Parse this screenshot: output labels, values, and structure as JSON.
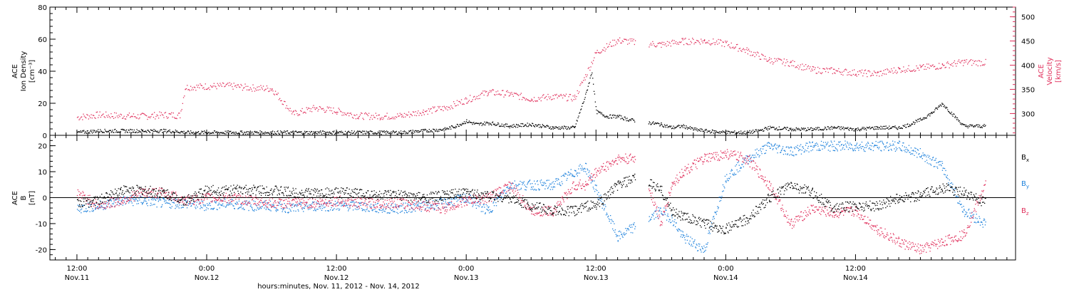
{
  "chart_data": [
    {
      "type": "scatter",
      "panel": "top",
      "ylabel_left": [
        "ACE",
        "Ion Density",
        "[cm⁻³]"
      ],
      "ylabel_right": [
        "ACE",
        "Velocity",
        "[km/s]"
      ],
      "ylim_left": [
        0,
        80
      ],
      "yticks_left": [
        "0",
        "20",
        "40",
        "60",
        "80"
      ],
      "ylim_right": [
        255,
        520
      ],
      "yticks_right": [
        "300",
        "350",
        "400",
        "450",
        "500"
      ],
      "colors": {
        "density": "#000000",
        "velocity": "#e0305c"
      },
      "series": [
        {
          "axis": "left",
          "color": "#000000",
          "x": [
            0,
            2,
            4,
            6,
            8,
            9.5,
            10,
            12,
            14,
            16,
            18,
            20,
            22,
            24,
            26,
            28,
            30,
            32,
            34,
            35,
            36,
            37,
            38,
            40,
            42,
            44,
            46,
            47,
            47.6,
            48,
            49,
            50,
            51,
            52,
            54,
            55,
            56,
            57,
            58,
            60,
            61,
            62,
            63,
            64,
            66,
            68,
            70,
            72,
            74,
            76,
            77,
            78,
            79,
            80,
            82,
            84
          ],
          "y": [
            2,
            3,
            3,
            3,
            3,
            2.5,
            2,
            2,
            2,
            2,
            2,
            2,
            2,
            2,
            2,
            2,
            2,
            3,
            4,
            6,
            9,
            7,
            8,
            6,
            7,
            5,
            5,
            25,
            40,
            15,
            12,
            12,
            10,
            9,
            7,
            5,
            6,
            4,
            3,
            2,
            2,
            2,
            3,
            5,
            4,
            4,
            5,
            4,
            5,
            5,
            7,
            10,
            14,
            20,
            6,
            6
          ]
        },
        {
          "axis": "right",
          "color": "#e0305c",
          "x": [
            0,
            2,
            4,
            6,
            8,
            9.5,
            10,
            12,
            14,
            16,
            18,
            20,
            22,
            24,
            26,
            28,
            30,
            32,
            34,
            36,
            38,
            40,
            42,
            44,
            46,
            47,
            48,
            50,
            52,
            54,
            56,
            58,
            60,
            62,
            64,
            66,
            68,
            70,
            72,
            74,
            76,
            78,
            80,
            82,
            84
          ],
          "y": [
            293,
            298,
            296,
            295,
            298,
            297,
            355,
            357,
            358,
            354,
            352,
            300,
            312,
            306,
            296,
            295,
            296,
            305,
            312,
            329,
            345,
            341,
            331,
            336,
            333,
            378,
            427,
            452,
            447,
            443,
            450,
            451,
            445,
            430,
            411,
            405,
            391,
            389,
            385,
            383,
            392,
            395,
            400,
            407,
            406
          ]
        }
      ]
    },
    {
      "type": "scatter",
      "panel": "bottom",
      "ylabel_left": [
        "ACE",
        "B",
        "[nT]"
      ],
      "ylim": [
        -24,
        24
      ],
      "yticks": [
        "-20",
        "-10",
        "0",
        "10",
        "20"
      ],
      "zero_line": true,
      "legend": [
        "Bx",
        "By",
        "Bz"
      ],
      "colors": {
        "Bx": "#000000",
        "By": "#1e82dc",
        "Bz": "#e0305c"
      },
      "series": [
        {
          "name": "Bx",
          "color": "#000000",
          "x": [
            0,
            2,
            4,
            6,
            8,
            10,
            12,
            14,
            16,
            18,
            20,
            22,
            24,
            26,
            28,
            30,
            32,
            34,
            36,
            38,
            40,
            42,
            44,
            46,
            47,
            48,
            50,
            52,
            54,
            55,
            56,
            58,
            60,
            62,
            64,
            66,
            68,
            70,
            72,
            74,
            76,
            78,
            80,
            82,
            84
          ],
          "y": [
            -2,
            -1,
            3,
            3,
            2,
            -1,
            3,
            3,
            3,
            3,
            2,
            2,
            2,
            2,
            1,
            1,
            0,
            1,
            2,
            1,
            0,
            -3,
            -5,
            -5,
            -3,
            -3,
            5,
            8,
            3,
            -5,
            -7,
            -10,
            -12,
            -8,
            0,
            5,
            2,
            -4,
            -3,
            -3,
            0,
            1,
            4,
            2,
            -2
          ]
        },
        {
          "name": "By",
          "color": "#1e82dc",
          "x": [
            0,
            2,
            4,
            6,
            8,
            10,
            12,
            14,
            16,
            18,
            20,
            22,
            24,
            26,
            28,
            30,
            32,
            34,
            36,
            38,
            40,
            42,
            44,
            46,
            47,
            48,
            50,
            52,
            54,
            55,
            56,
            58,
            60,
            62,
            64,
            66,
            68,
            70,
            72,
            74,
            76,
            78,
            80,
            82,
            84
          ],
          "y": [
            -4,
            -3,
            -1,
            -1,
            -2,
            -2,
            -3,
            -2,
            -3,
            -3,
            -4,
            -3,
            -3,
            -3,
            -4,
            -4,
            -3,
            -2,
            0,
            -5,
            5,
            5,
            5,
            10,
            12,
            3,
            -15,
            -10,
            -5,
            -8,
            -15,
            -20,
            8,
            15,
            20,
            18,
            20,
            20,
            20,
            20,
            20,
            17,
            12,
            -5,
            -10
          ]
        },
        {
          "name": "Bz",
          "color": "#e0305c",
          "x": [
            0,
            2,
            4,
            6,
            8,
            10,
            12,
            14,
            16,
            18,
            20,
            22,
            24,
            26,
            28,
            30,
            32,
            34,
            36,
            38,
            40,
            42,
            44,
            46,
            47,
            48,
            50,
            52,
            54,
            55,
            56,
            58,
            60,
            62,
            64,
            66,
            68,
            70,
            72,
            74,
            76,
            78,
            80,
            82,
            84
          ],
          "y": [
            2,
            -3,
            -1,
            2,
            2,
            -1,
            0,
            0,
            -1,
            -2,
            -2,
            -2,
            -1,
            -2,
            -2,
            -2,
            -3,
            -4,
            -1,
            0,
            5,
            -5,
            -5,
            5,
            5,
            10,
            15,
            15,
            -10,
            5,
            10,
            15,
            17,
            15,
            5,
            -10,
            -4,
            -6,
            -5,
            -12,
            -17,
            -20,
            -17,
            -14,
            5
          ]
        }
      ]
    }
  ],
  "axes": {
    "x_range_hours": [
      -2.5,
      86.8
    ],
    "ticks": [
      {
        "x": 0,
        "label": "12:00",
        "date": "Nov.11"
      },
      {
        "x": 12,
        "label": "0:00",
        "date": "Nov.12"
      },
      {
        "x": 24,
        "label": "12:00",
        "date": "Nov.12"
      },
      {
        "x": 36,
        "label": "0:00",
        "date": "Nov.13"
      },
      {
        "x": 48,
        "label": "12:00",
        "date": "Nov.13"
      },
      {
        "x": 60,
        "label": "0:00",
        "date": "Nov.14"
      },
      {
        "x": 72,
        "label": "12:00",
        "date": "Nov.14"
      }
    ],
    "xlabel": "hours:minutes, Nov. 11, 2012 - Nov. 14, 2012"
  },
  "legend_labels": {
    "bx": "B",
    "bx_sub": "x",
    "by": "B",
    "by_sub": "y",
    "bz": "B",
    "bz_sub": "z"
  }
}
